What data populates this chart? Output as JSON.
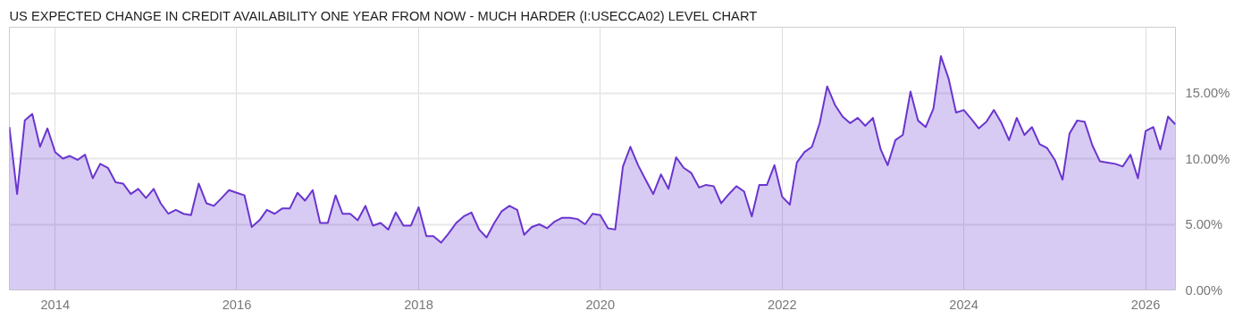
{
  "chart_data": {
    "type": "area",
    "title": "US EXPECTED CHANGE IN CREDIT AVAILABILITY ONE YEAR FROM NOW - MUCH HARDER (I:USECCA02) LEVEL CHART",
    "x": [
      "2013-07",
      "2013-08",
      "2013-09",
      "2013-10",
      "2013-11",
      "2013-12",
      "2014-01",
      "2014-02",
      "2014-03",
      "2014-04",
      "2014-05",
      "2014-06",
      "2014-07",
      "2014-08",
      "2014-09",
      "2014-10",
      "2014-11",
      "2014-12",
      "2015-01",
      "2015-02",
      "2015-03",
      "2015-04",
      "2015-05",
      "2015-06",
      "2015-07",
      "2015-08",
      "2015-09",
      "2015-10",
      "2015-11",
      "2015-12",
      "2016-01",
      "2016-02",
      "2016-03",
      "2016-04",
      "2016-05",
      "2016-06",
      "2016-07",
      "2016-08",
      "2016-09",
      "2016-10",
      "2016-11",
      "2016-12",
      "2017-01",
      "2017-02",
      "2017-03",
      "2017-04",
      "2017-05",
      "2017-06",
      "2017-07",
      "2017-08",
      "2017-09",
      "2017-10",
      "2017-11",
      "2017-12",
      "2018-01",
      "2018-02",
      "2018-03",
      "2018-04",
      "2018-05",
      "2018-06",
      "2018-07",
      "2018-08",
      "2018-09",
      "2018-10",
      "2018-11",
      "2018-12",
      "2019-01",
      "2019-02",
      "2019-03",
      "2019-04",
      "2019-05",
      "2019-06",
      "2019-07",
      "2019-08",
      "2019-09",
      "2019-10",
      "2019-11",
      "2019-12",
      "2020-01",
      "2020-02",
      "2020-03",
      "2020-04",
      "2020-05",
      "2020-06",
      "2020-07",
      "2020-08",
      "2020-09",
      "2020-10",
      "2020-11",
      "2020-12",
      "2021-01",
      "2021-02",
      "2021-03",
      "2021-04",
      "2021-05",
      "2021-06",
      "2021-07",
      "2021-08",
      "2021-09",
      "2021-10",
      "2021-11",
      "2021-12",
      "2022-01",
      "2022-02",
      "2022-03",
      "2022-04",
      "2022-05",
      "2022-06",
      "2022-07",
      "2022-08",
      "2022-09",
      "2022-10",
      "2022-11",
      "2022-12",
      "2023-01",
      "2023-02",
      "2023-03",
      "2023-04",
      "2023-05",
      "2023-06",
      "2023-07",
      "2023-08",
      "2023-09",
      "2023-10",
      "2023-11",
      "2023-12",
      "2024-01",
      "2024-02",
      "2024-03",
      "2024-04",
      "2024-05",
      "2024-06",
      "2024-07",
      "2024-08",
      "2024-09",
      "2024-10",
      "2024-11",
      "2024-12",
      "2025-01",
      "2025-02",
      "2025-03",
      "2025-04",
      "2025-05",
      "2025-06",
      "2025-07",
      "2025-08",
      "2025-09",
      "2025-10",
      "2025-11",
      "2025-12",
      "2026-01",
      "2026-02",
      "2026-03",
      "2026-04",
      "2026-05"
    ],
    "series": [
      {
        "color": "#6a35d0",
        "values": [
          12.4,
          7.3,
          12.9,
          13.4,
          10.9,
          12.3,
          10.5,
          10.0,
          10.2,
          9.9,
          10.3,
          8.5,
          9.6,
          9.3,
          8.2,
          8.1,
          7.3,
          7.7,
          7.0,
          7.7,
          6.6,
          5.8,
          6.1,
          5.8,
          5.7,
          8.1,
          6.6,
          6.4,
          7.0,
          7.6,
          7.4,
          7.2,
          4.8,
          5.3,
          6.1,
          5.8,
          6.2,
          6.2,
          7.4,
          6.8,
          7.6,
          5.1,
          5.1,
          7.2,
          5.8,
          5.8,
          5.3,
          6.4,
          4.9,
          5.1,
          4.6,
          5.9,
          4.9,
          4.9,
          6.3,
          4.1,
          4.1,
          3.6,
          4.3,
          5.1,
          5.6,
          5.9,
          4.6,
          4.0,
          5.1,
          6.0,
          6.4,
          6.1,
          4.2,
          4.8,
          5.0,
          4.7,
          5.2,
          5.5,
          5.5,
          5.4,
          5.0,
          5.8,
          5.7,
          4.7,
          4.6,
          9.4,
          10.9,
          9.5,
          8.4,
          7.3,
          8.8,
          7.7,
          10.1,
          9.3,
          8.9,
          7.8,
          8.0,
          7.9,
          6.6,
          7.3,
          7.9,
          7.5,
          5.6,
          8.0,
          8.0,
          9.5,
          7.1,
          6.5,
          9.7,
          10.5,
          10.9,
          12.7,
          15.5,
          14.1,
          13.2,
          12.7,
          13.1,
          12.5,
          13.1,
          10.7,
          9.5,
          11.4,
          11.8,
          15.1,
          12.9,
          12.4,
          13.8,
          17.8,
          16.1,
          13.5,
          13.7,
          13.0,
          12.3,
          12.8,
          13.7,
          12.7,
          11.4,
          13.1,
          11.8,
          12.4,
          11.1,
          10.8,
          9.9,
          8.4,
          11.9,
          12.9,
          12.8,
          11.0,
          9.8,
          9.7,
          9.6,
          9.4,
          10.3,
          8.5,
          12.1,
          12.4,
          10.7,
          13.2,
          12.6
        ]
      }
    ],
    "xlim": [
      "2013-07",
      "2026-05"
    ],
    "xticks": [
      "2014",
      "2016",
      "2018",
      "2020",
      "2022",
      "2024",
      "2026"
    ],
    "ylim": [
      0,
      20
    ],
    "yticks": [
      {
        "value": 0,
        "label": "0.00%"
      },
      {
        "value": 5,
        "label": "5.00%"
      },
      {
        "value": 10,
        "label": "10.00%"
      },
      {
        "value": 15,
        "label": "15.00%"
      }
    ],
    "grid": true
  }
}
